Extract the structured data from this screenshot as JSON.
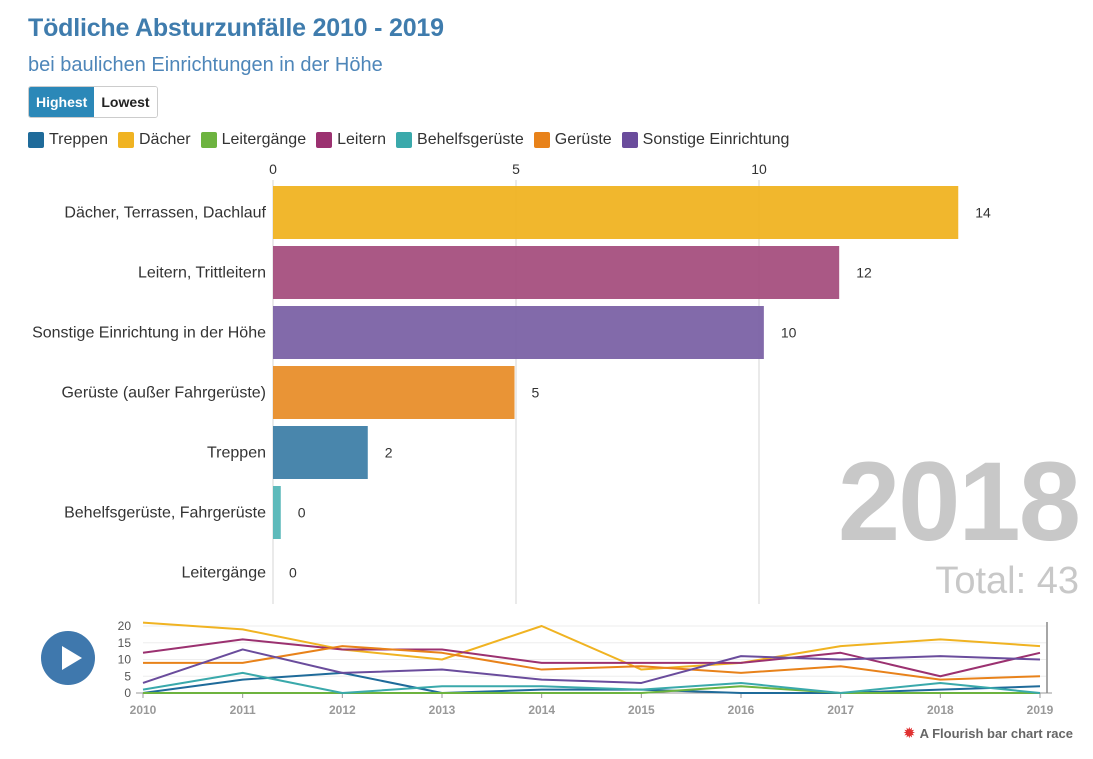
{
  "header": {
    "title": "Tödliche Absturzunfälle 2010 - 2019",
    "subtitle": "bei baulichen Einrichtungen in der Höhe"
  },
  "controls": {
    "highest": "Highest",
    "lowest": "Lowest"
  },
  "legend": [
    {
      "label": "Treppen",
      "color": "#1f6b9a"
    },
    {
      "label": "Dächer",
      "color": "#f0b322"
    },
    {
      "label": "Leitergänge",
      "color": "#6db33f"
    },
    {
      "label": "Leitern",
      "color": "#9b3170"
    },
    {
      "label": "Behelfsgerüste",
      "color": "#3aa9ab"
    },
    {
      "label": "Gerüste",
      "color": "#e8821a"
    },
    {
      "label": "Sonstige Einrichtung",
      "color": "#6a4c9c"
    }
  ],
  "overlay": {
    "year": "2018",
    "total": "Total: 43"
  },
  "credit": {
    "icon": "flourish-logo-icon",
    "text": "A Flourish bar chart race"
  },
  "chart_data": [
    {
      "type": "bar",
      "orientation": "horizontal",
      "title": "Tödliche Absturzunfälle 2010 - 2019",
      "xlim": [
        0,
        14
      ],
      "xticks": [
        0,
        5,
        10
      ],
      "categories": [
        "Dächer, Terrassen, Dachlauf",
        "Leitern, Trittleitern",
        "Sonstige Einrichtung in der Höhe",
        "Gerüste (außer Fahrgerüste)",
        "Treppen",
        "Behelfsgerüste, Fahrgerüste",
        "Leitergänge"
      ],
      "values": [
        14,
        12,
        10,
        5,
        2,
        0,
        0
      ],
      "value_labels": [
        "14",
        "12",
        "10",
        "5",
        "2",
        "0",
        "0"
      ],
      "display_values": [
        14.1,
        11.65,
        10.1,
        4.97,
        1.95,
        0.16,
        0
      ],
      "colors": [
        "#f0b322",
        "#a54f7e",
        "#7b62a5",
        "#e88e2b",
        "#3f7fa8",
        "#55b6b7",
        "#6db33f"
      ]
    },
    {
      "type": "line",
      "x": [
        2010,
        2011,
        2012,
        2013,
        2014,
        2015,
        2016,
        2017,
        2018,
        2019
      ],
      "ylim": [
        0,
        20
      ],
      "yticks": [
        "0",
        "5",
        "10",
        "15",
        "20"
      ],
      "xticks": [
        "2010",
        "2011",
        "2012",
        "2013",
        "2014",
        "2015",
        "2016",
        "2017",
        "2018",
        "2019"
      ],
      "series": [
        {
          "name": "Treppen",
          "color": "#1f6b9a",
          "values": [
            0,
            4,
            6,
            0,
            1,
            1,
            0,
            0,
            1,
            2
          ]
        },
        {
          "name": "Dächer",
          "color": "#f0b322",
          "values": [
            21,
            19,
            13,
            10,
            20,
            7,
            9,
            14,
            16,
            14
          ]
        },
        {
          "name": "Leitergänge",
          "color": "#6db33f",
          "values": [
            0,
            0,
            0,
            0,
            0,
            0,
            2,
            0,
            0,
            0
          ]
        },
        {
          "name": "Leitern",
          "color": "#9b3170",
          "values": [
            12,
            16,
            13,
            13,
            9,
            9,
            9,
            12,
            5,
            12
          ]
        },
        {
          "name": "Behelfsgerüste",
          "color": "#3aa9ab",
          "values": [
            1,
            6,
            0,
            2,
            2,
            1,
            3,
            0,
            3,
            0
          ]
        },
        {
          "name": "Gerüste",
          "color": "#e8821a",
          "values": [
            9,
            9,
            14,
            12,
            7,
            8,
            6,
            8,
            4,
            5
          ]
        },
        {
          "name": "Sonstige Einrichtung",
          "color": "#6a4c9c",
          "values": [
            3,
            13,
            6,
            7,
            4,
            3,
            11,
            10,
            11,
            10
          ]
        }
      ],
      "current_x": 2019
    }
  ]
}
